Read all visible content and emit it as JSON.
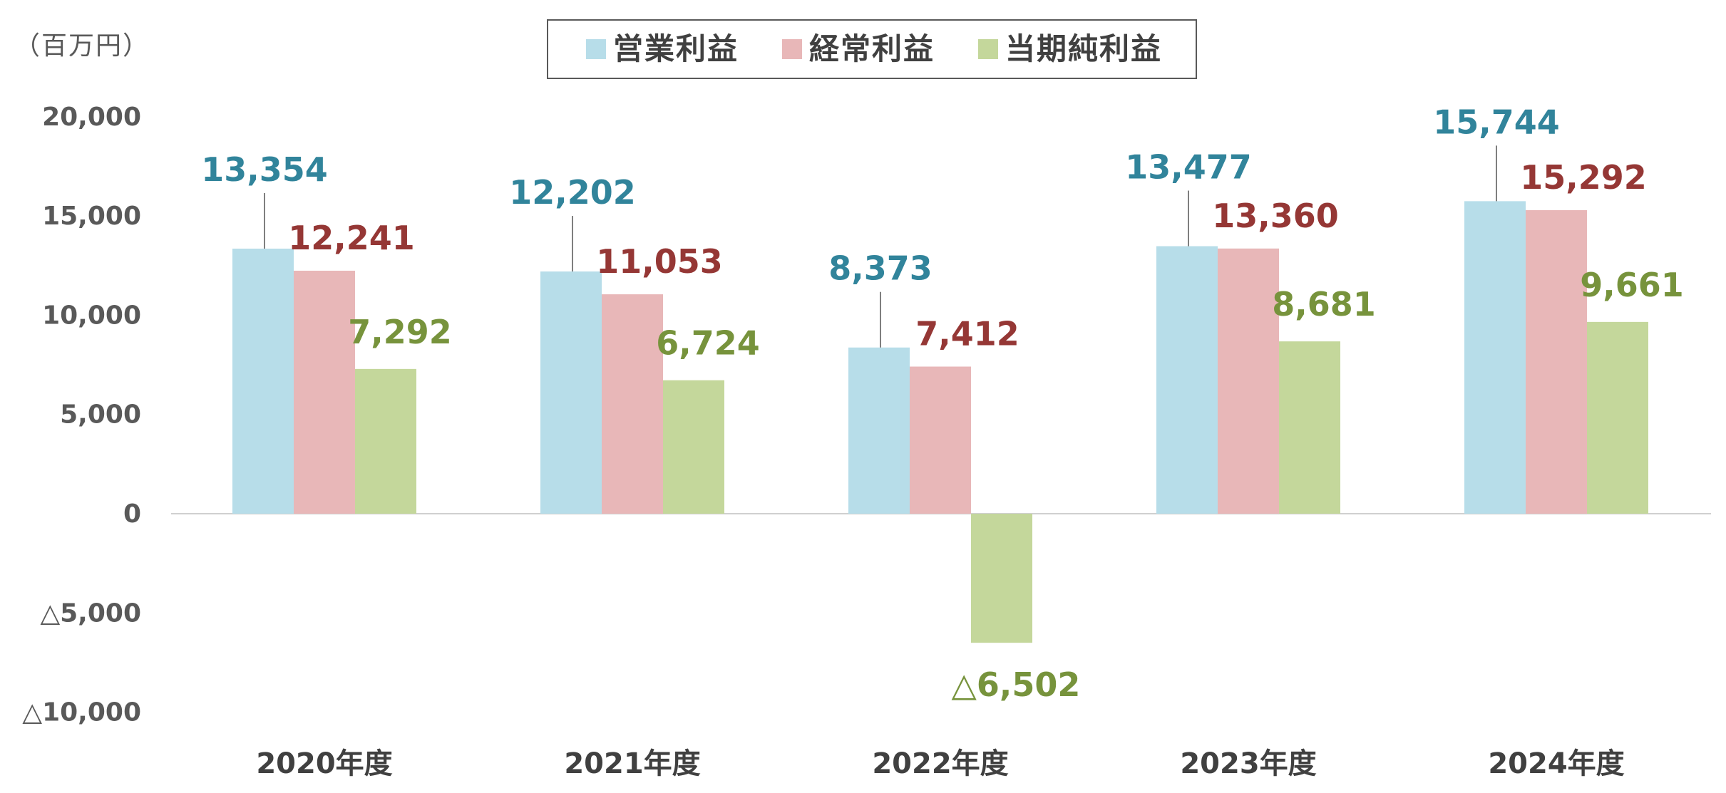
{
  "chart_data": {
    "type": "bar",
    "unit_label": "（百万円）",
    "categories": [
      "2020年度",
      "2021年度",
      "2022年度",
      "2023年度",
      "2024年度"
    ],
    "series": [
      {
        "name": "営業利益",
        "color": "#b7dde9",
        "label_color": "#31849b",
        "values": [
          13354,
          12202,
          8373,
          13477,
          15744
        ],
        "labels": [
          "13,354",
          "12,202",
          "8,373",
          "13,477",
          "15,744"
        ]
      },
      {
        "name": "経常利益",
        "color": "#e8b7b8",
        "label_color": "#953735",
        "values": [
          12241,
          11053,
          7412,
          13360,
          15292
        ],
        "labels": [
          "12,241",
          "11,053",
          "7,412",
          "13,360",
          "15,292"
        ]
      },
      {
        "name": "当期純利益",
        "color": "#c4d79b",
        "label_color": "#77933c",
        "values": [
          7292,
          6724,
          -6502,
          8681,
          9661
        ],
        "labels": [
          "7,292",
          "6,724",
          "△6,502",
          "8,681",
          "9,661"
        ]
      }
    ],
    "ylim": [
      -10000,
      20000
    ],
    "yticks": [
      20000,
      15000,
      10000,
      5000,
      0,
      -5000,
      -10000
    ],
    "ytick_labels": [
      "20,000",
      "15,000",
      "10,000",
      "5,000",
      "0",
      "△5,000",
      "△10,000"
    ],
    "legend_position": "top-center",
    "grid": false
  }
}
